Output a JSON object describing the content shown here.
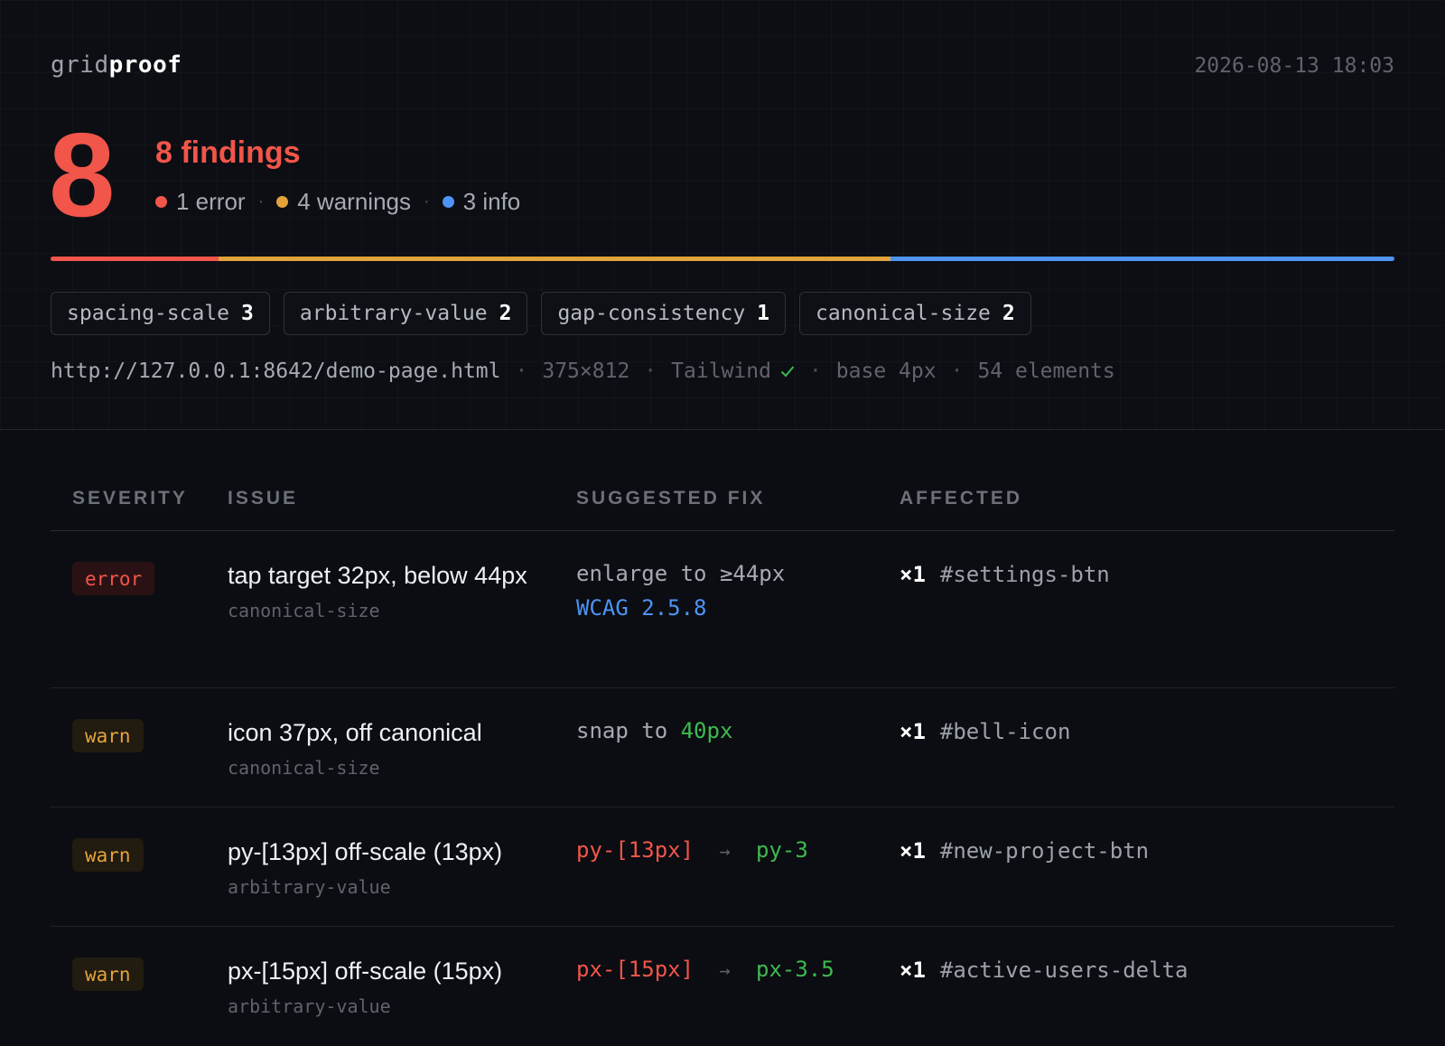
{
  "app": {
    "brand_part1": "grid",
    "brand_part2": "proof",
    "timestamp": "2026-08-13 18:03"
  },
  "summary": {
    "total": "8",
    "title": "8 findings",
    "errors": "1 error",
    "warnings": "4 warnings",
    "info": "3 info",
    "distribution": {
      "error": 1,
      "warning": 4,
      "info": 3
    }
  },
  "colors": {
    "error": "#f2554a",
    "warning": "#e3a33b",
    "info": "#4d94f5",
    "success": "#3fb950"
  },
  "rules": [
    {
      "name": "spacing-scale",
      "count": "3"
    },
    {
      "name": "arbitrary-value",
      "count": "2"
    },
    {
      "name": "gap-consistency",
      "count": "1"
    },
    {
      "name": "canonical-size",
      "count": "2"
    }
  ],
  "meta": {
    "url": "http://127.0.0.1:8642/demo-page.html",
    "viewport": "375×812",
    "framework": "Tailwind",
    "framework_icon": "check-icon",
    "base": "base 4px",
    "elements": "54 elements",
    "separator": "·"
  },
  "table": {
    "headers": {
      "severity": "SEVERITY",
      "issue": "ISSUE",
      "fix": "SUGGESTED FIX",
      "affected": "AFFECTED"
    },
    "rows": [
      {
        "severity": "error",
        "issue": "tap target 32px, below 44px",
        "rule": "canonical-size",
        "fix_text": "enlarge to ≥44px",
        "fix_link": "WCAG 2.5.8",
        "count": "×1",
        "selector": "#settings-btn"
      },
      {
        "severity": "warn",
        "issue": "icon 37px, off canonical",
        "rule": "canonical-size",
        "fix_prefix": "snap to",
        "fix_value": "40px",
        "count": "×1",
        "selector": "#bell-icon"
      },
      {
        "severity": "warn",
        "issue": "py-[13px] off-scale (13px)",
        "rule": "arbitrary-value",
        "fix_from": "py-[13px]",
        "fix_to": "py-3",
        "count": "×1",
        "selector": "#new-project-btn"
      },
      {
        "severity": "warn",
        "issue": "px-[15px] off-scale (15px)",
        "rule": "arbitrary-value",
        "fix_from": "px-[15px]",
        "fix_to": "px-3.5",
        "count": "×1",
        "selector": "#active-users-delta"
      }
    ],
    "arrow_icon": "arrow-right-icon",
    "arrow_glyph": "→"
  }
}
